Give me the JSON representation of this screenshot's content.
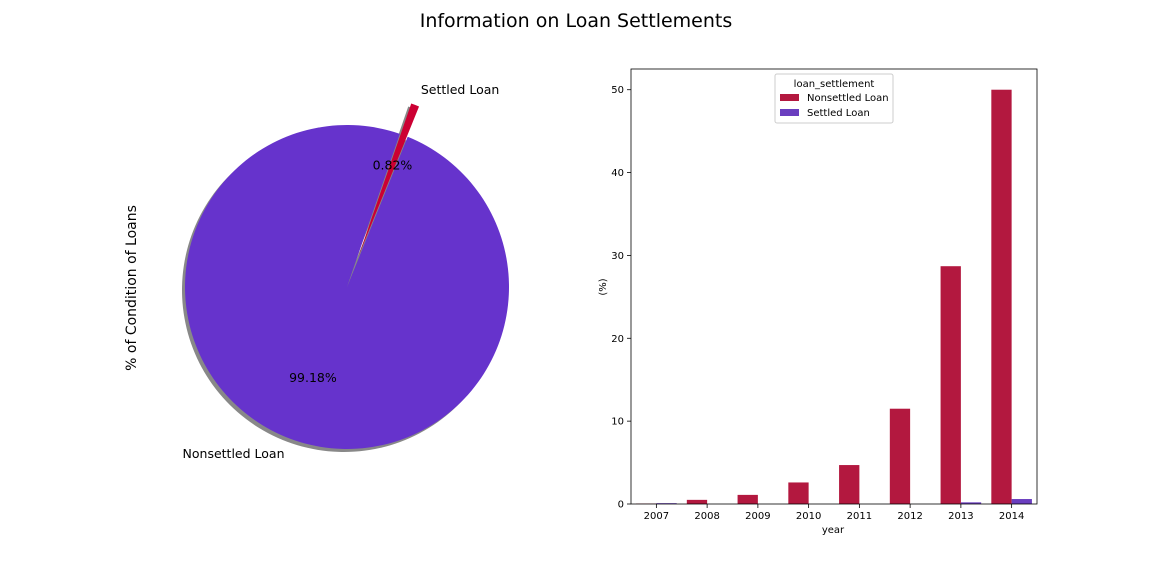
{
  "figure": {
    "title": "Information on Loan Settlements"
  },
  "chart_data": [
    {
      "type": "pie",
      "ylabel": "% of Condition of Loans",
      "labels": [
        "Nonsettled Loan",
        "Settled Loan"
      ],
      "values": [
        99.18,
        0.82
      ],
      "pct_labels": [
        "99.18%",
        "0.82%"
      ],
      "explode": [
        0,
        0.2
      ],
      "shadow": true,
      "colors": [
        "#6633cc",
        "#cc0033"
      ]
    },
    {
      "type": "bar",
      "xlabel": "year",
      "ylabel": "(%)",
      "categories": [
        "2007",
        "2008",
        "2009",
        "2010",
        "2011",
        "2012",
        "2013",
        "2014"
      ],
      "ylim": [
        0,
        52.5
      ],
      "yticks": [
        0,
        10,
        20,
        30,
        40,
        50
      ],
      "legend": {
        "title": "loan_settlement",
        "placement": "upper-center"
      },
      "series": [
        {
          "name": "Nonsettled Loan",
          "color": "#b3183f",
          "values": [
            0.05,
            0.5,
            1.1,
            2.6,
            4.7,
            11.5,
            28.7,
            50.0
          ]
        },
        {
          "name": "Settled Loan",
          "color": "#6a3ebf",
          "values": [
            0.1,
            0.0,
            0.0,
            0.0,
            0.0,
            0.0,
            0.2,
            0.6
          ]
        }
      ]
    }
  ]
}
